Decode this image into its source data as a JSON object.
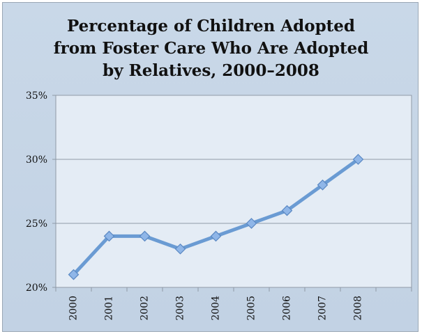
{
  "chart_data": {
    "type": "line",
    "title": "Percentage of Children Adopted\nfrom Foster Care Who Are Adopted\nby Relatives, 2000–2008",
    "xlabel": "",
    "ylabel": "",
    "categories": [
      "2000",
      "2001",
      "2002",
      "2003",
      "2004",
      "2005",
      "2006",
      "2007",
      "2008"
    ],
    "series": [
      {
        "values": [
          21,
          24,
          24,
          23,
          24,
          25,
          26,
          28,
          30
        ]
      }
    ],
    "ylim": [
      20,
      35
    ],
    "yticks": [
      20,
      25,
      30,
      35
    ],
    "ytick_labels": [
      "20%",
      "25%",
      "30%",
      "35%"
    ],
    "grid": "horizontal",
    "legend": "none",
    "line_color": "#6a9bd3",
    "marker": "diamond",
    "marker_color": "#8fb6e8"
  }
}
